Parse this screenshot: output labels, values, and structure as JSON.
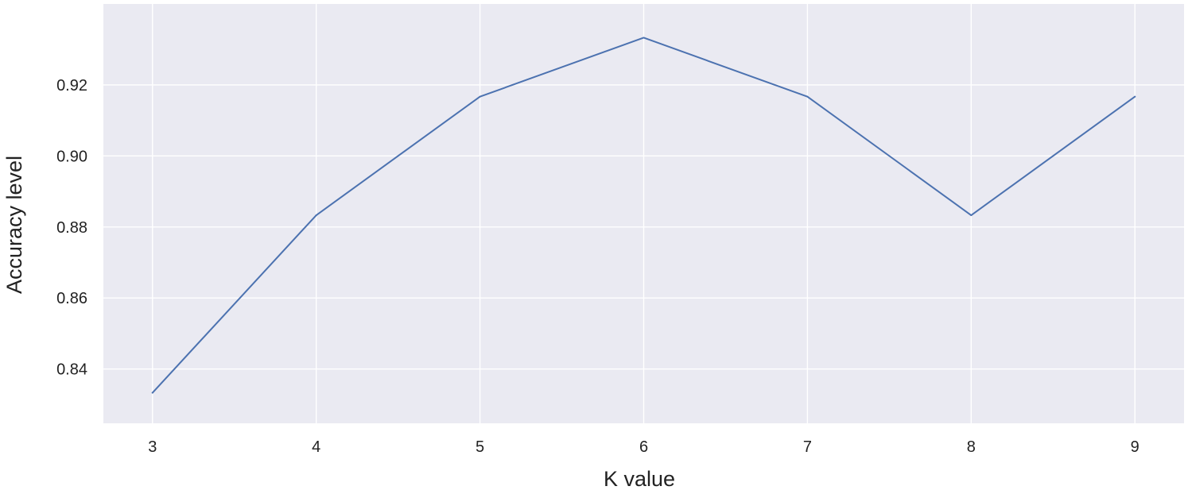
{
  "chart_data": {
    "type": "line",
    "title": "",
    "xlabel": "K value",
    "ylabel": "Accuracy level",
    "x": [
      3,
      4,
      5,
      6,
      7,
      8,
      9
    ],
    "series": [
      {
        "values": [
          0.8333,
          0.8833,
          0.9167,
          0.9333,
          0.9167,
          0.8833,
          0.9167
        ]
      }
    ],
    "x_ticks": [
      "3",
      "4",
      "5",
      "6",
      "7",
      "8",
      "9"
    ],
    "y_ticks": [
      "0.84",
      "0.86",
      "0.88",
      "0.90",
      "0.92"
    ],
    "y_tick_values": [
      0.84,
      0.86,
      0.88,
      0.9,
      0.92
    ],
    "xlim": [
      2.7,
      9.3
    ],
    "ylim": [
      0.8247,
      0.9428
    ],
    "grid": true,
    "legend": "none",
    "colors": {
      "plot_background": "#eaeaf2",
      "grid": "#ffffff",
      "line": "#4c72b0"
    }
  }
}
